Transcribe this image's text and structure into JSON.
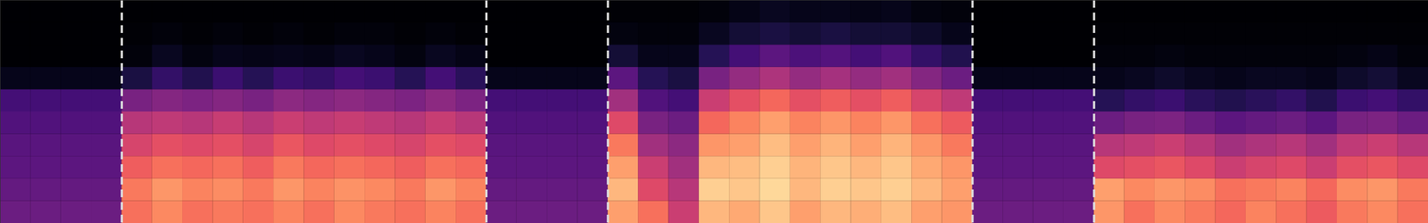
{
  "chart_data": {
    "type": "heatmap",
    "xlim": [
      0,
      47
    ],
    "ylim": [
      0,
      10
    ],
    "clim": [
      0,
      1
    ],
    "tick_labels": false,
    "color": "magma",
    "vlines": [
      4,
      16,
      20,
      32,
      36
    ],
    "cells": [
      [
        0.32,
        0.32,
        0.32,
        0.32,
        0.7,
        0.75,
        0.7,
        0.72,
        0.7,
        0.74,
        0.7,
        0.75,
        0.72,
        0.7,
        0.74,
        0.7,
        0.32,
        0.32,
        0.32,
        0.32,
        0.8,
        0.7,
        0.55,
        0.85,
        0.82,
        0.88,
        0.8,
        0.85,
        0.83,
        0.86,
        0.8,
        0.78,
        0.32,
        0.32,
        0.32,
        0.32,
        0.78,
        0.7,
        0.75,
        0.72,
        0.68,
        0.74,
        0.7,
        0.65,
        0.72,
        0.75,
        0.7
      ],
      [
        0.3,
        0.3,
        0.3,
        0.3,
        0.72,
        0.78,
        0.74,
        0.76,
        0.72,
        0.78,
        0.74,
        0.77,
        0.75,
        0.72,
        0.78,
        0.74,
        0.3,
        0.3,
        0.3,
        0.3,
        0.85,
        0.6,
        0.5,
        0.9,
        0.88,
        0.92,
        0.85,
        0.9,
        0.88,
        0.9,
        0.85,
        0.8,
        0.3,
        0.3,
        0.3,
        0.3,
        0.8,
        0.75,
        0.78,
        0.76,
        0.7,
        0.72,
        0.74,
        0.68,
        0.76,
        0.78,
        0.72
      ],
      [
        0.28,
        0.28,
        0.28,
        0.28,
        0.66,
        0.7,
        0.68,
        0.7,
        0.66,
        0.72,
        0.68,
        0.7,
        0.68,
        0.66,
        0.7,
        0.68,
        0.28,
        0.28,
        0.28,
        0.28,
        0.8,
        0.55,
        0.45,
        0.85,
        0.86,
        0.9,
        0.84,
        0.88,
        0.85,
        0.88,
        0.82,
        0.78,
        0.28,
        0.28,
        0.28,
        0.28,
        0.6,
        0.62,
        0.64,
        0.6,
        0.55,
        0.58,
        0.6,
        0.55,
        0.62,
        0.64,
        0.6
      ],
      [
        0.27,
        0.27,
        0.27,
        0.27,
        0.58,
        0.62,
        0.6,
        0.62,
        0.58,
        0.64,
        0.6,
        0.62,
        0.6,
        0.58,
        0.62,
        0.6,
        0.27,
        0.27,
        0.27,
        0.27,
        0.72,
        0.45,
        0.4,
        0.78,
        0.8,
        0.86,
        0.8,
        0.84,
        0.8,
        0.84,
        0.78,
        0.72,
        0.27,
        0.27,
        0.27,
        0.27,
        0.5,
        0.52,
        0.55,
        0.5,
        0.45,
        0.48,
        0.5,
        0.45,
        0.52,
        0.55,
        0.5
      ],
      [
        0.25,
        0.25,
        0.25,
        0.25,
        0.5,
        0.52,
        0.5,
        0.54,
        0.5,
        0.55,
        0.52,
        0.54,
        0.52,
        0.5,
        0.54,
        0.5,
        0.25,
        0.25,
        0.25,
        0.25,
        0.6,
        0.35,
        0.32,
        0.68,
        0.74,
        0.8,
        0.74,
        0.78,
        0.74,
        0.78,
        0.7,
        0.65,
        0.25,
        0.25,
        0.25,
        0.25,
        0.32,
        0.35,
        0.36,
        0.32,
        0.28,
        0.3,
        0.32,
        0.28,
        0.35,
        0.36,
        0.32
      ],
      [
        0.22,
        0.22,
        0.22,
        0.22,
        0.35,
        0.38,
        0.36,
        0.38,
        0.35,
        0.4,
        0.38,
        0.4,
        0.38,
        0.36,
        0.4,
        0.36,
        0.22,
        0.22,
        0.22,
        0.22,
        0.45,
        0.25,
        0.22,
        0.55,
        0.62,
        0.68,
        0.62,
        0.66,
        0.62,
        0.66,
        0.58,
        0.52,
        0.22,
        0.22,
        0.22,
        0.22,
        0.15,
        0.18,
        0.2,
        0.16,
        0.14,
        0.16,
        0.18,
        0.14,
        0.2,
        0.22,
        0.18
      ],
      [
        0.05,
        0.05,
        0.05,
        0.05,
        0.12,
        0.18,
        0.14,
        0.2,
        0.15,
        0.2,
        0.18,
        0.22,
        0.2,
        0.15,
        0.22,
        0.16,
        0.05,
        0.05,
        0.05,
        0.05,
        0.28,
        0.15,
        0.12,
        0.35,
        0.42,
        0.48,
        0.42,
        0.46,
        0.42,
        0.45,
        0.38,
        0.32,
        0.05,
        0.05,
        0.05,
        0.05,
        0.05,
        0.06,
        0.08,
        0.06,
        0.05,
        0.06,
        0.06,
        0.05,
        0.08,
        0.1,
        0.06
      ],
      [
        0,
        0,
        0,
        0,
        0.02,
        0.06,
        0.03,
        0.05,
        0.04,
        0.05,
        0.04,
        0.06,
        0.05,
        0.03,
        0.06,
        0.04,
        0,
        0,
        0,
        0,
        0.1,
        0.05,
        0.05,
        0.15,
        0.22,
        0.28,
        0.24,
        0.26,
        0.22,
        0.25,
        0.18,
        0.14,
        0,
        0,
        0,
        0,
        0.02,
        0.02,
        0.03,
        0.02,
        0.02,
        0.02,
        0.02,
        0.02,
        0.03,
        0.04,
        0.02
      ],
      [
        0,
        0,
        0,
        0,
        0.01,
        0.02,
        0.01,
        0.02,
        0.01,
        0.02,
        0.01,
        0.02,
        0.02,
        0.01,
        0.02,
        0.01,
        0,
        0,
        0,
        0,
        0.03,
        0.02,
        0.02,
        0.06,
        0.1,
        0.12,
        0.1,
        0.12,
        0.1,
        0.1,
        0.08,
        0.05,
        0,
        0,
        0,
        0,
        0.01,
        0.01,
        0.01,
        0.01,
        0.01,
        0.01,
        0.01,
        0.01,
        0.01,
        0.01,
        0.01
      ],
      [
        0,
        0,
        0,
        0,
        0,
        0,
        0,
        0,
        0,
        0,
        0,
        0,
        0,
        0,
        0,
        0,
        0,
        0,
        0,
        0,
        0.01,
        0.01,
        0.01,
        0.02,
        0.04,
        0.06,
        0.05,
        0.05,
        0.04,
        0.05,
        0.03,
        0.02,
        0,
        0,
        0,
        0,
        0,
        0,
        0,
        0,
        0,
        0,
        0,
        0,
        0,
        0,
        0
      ]
    ]
  }
}
